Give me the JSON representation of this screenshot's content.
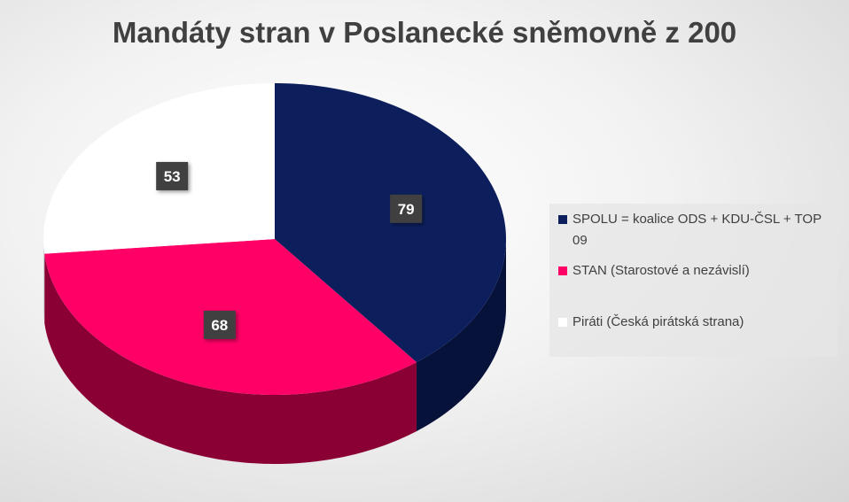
{
  "chart_data": {
    "type": "pie",
    "title": "Mandáty stran v Poslanecké sněmovně z 200",
    "categories": [
      "SPOLU = koalice ODS + KDU-ČSL + TOP 09",
      "STAN (Starostové a nezávislí)",
      "Piráti (Česká pirátská strana)"
    ],
    "values": [
      79,
      68,
      53
    ],
    "colors": [
      "#0c1f5c",
      "#ff0066",
      "#ffffff"
    ],
    "side_colors": [
      "#07123a",
      "#8a0035",
      "#cfcfcf"
    ],
    "legend_position": "right",
    "style": "3d"
  }
}
